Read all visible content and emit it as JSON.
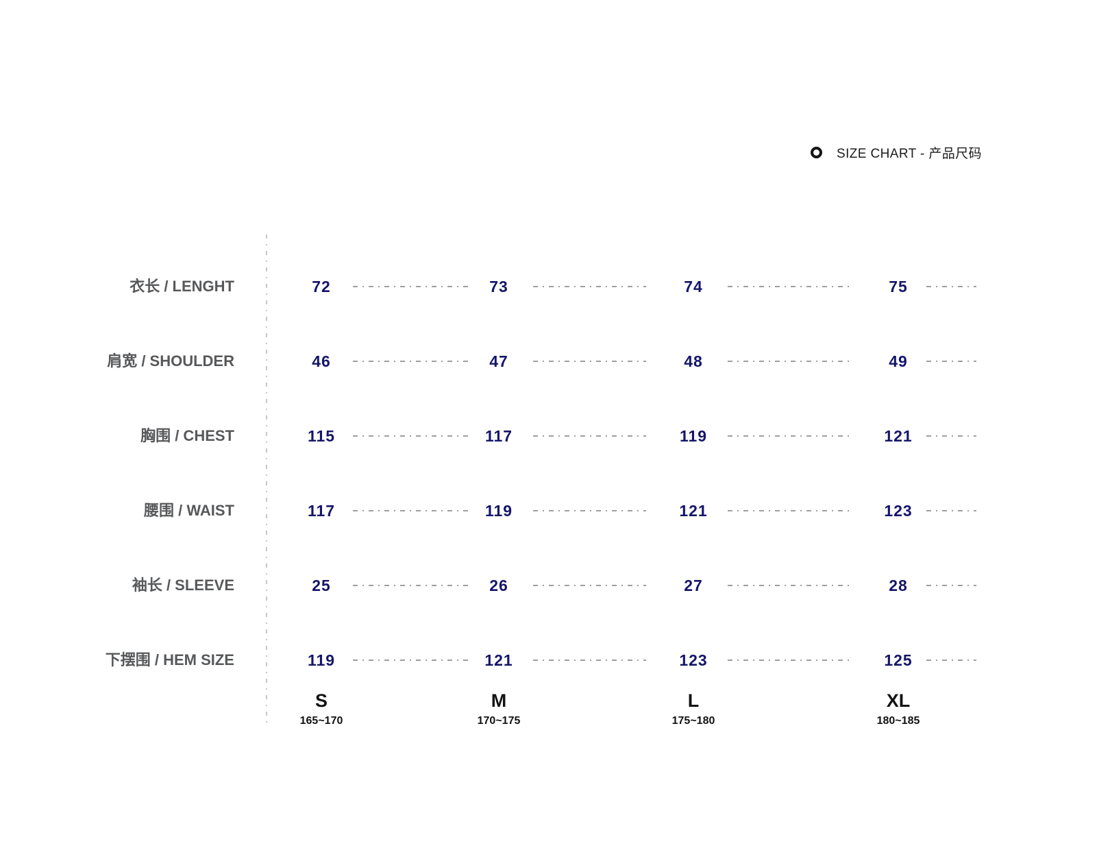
{
  "header": {
    "title": "SIZE CHART - 产品尺码",
    "icon": "ring-icon"
  },
  "chart_data": {
    "type": "table",
    "title": "SIZE CHART - 产品尺码",
    "rows": [
      {
        "label": "衣长 / LENGHT",
        "values": [
          "72",
          "73",
          "74",
          "75"
        ]
      },
      {
        "label": "肩宽 / SHOULDER",
        "values": [
          "46",
          "47",
          "48",
          "49"
        ]
      },
      {
        "label": "胸围 / CHEST",
        "values": [
          "115",
          "117",
          "119",
          "121"
        ]
      },
      {
        "label": "腰围 / WAIST",
        "values": [
          "117",
          "119",
          "121",
          "123"
        ]
      },
      {
        "label": "袖长 / SLEEVE",
        "values": [
          "25",
          "26",
          "27",
          "28"
        ]
      },
      {
        "label": "下摆围 / HEM SIZE",
        "values": [
          "119",
          "121",
          "123",
          "125"
        ]
      }
    ],
    "columns": [
      {
        "size": "S",
        "height_range": "165~170"
      },
      {
        "size": "M",
        "height_range": "170~175"
      },
      {
        "size": "L",
        "height_range": "175~180"
      },
      {
        "size": "XL",
        "height_range": "180~185"
      }
    ],
    "layout_hints": {
      "grid": "off",
      "separator_style": "dash-dot",
      "value_color": "#15156b",
      "label_color": "#57585a",
      "dash_color": "#9e9e9e",
      "divider_color": "#c7c7c7",
      "text_color": "#1c1c1c"
    }
  }
}
